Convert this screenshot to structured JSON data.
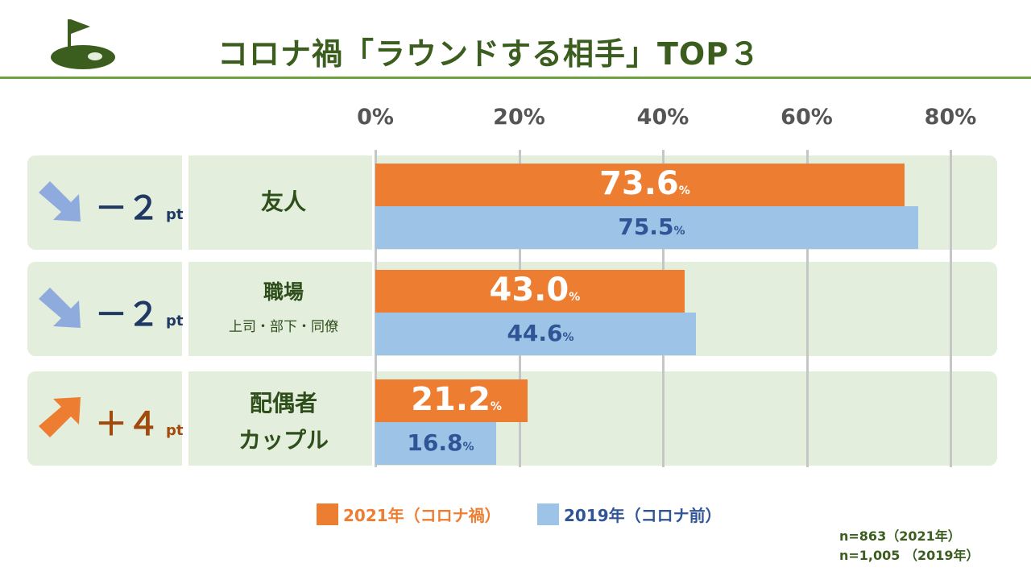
{
  "title": "コロナ禍「ラウンドする相手」TOP３",
  "colors": {
    "series_2021": "#ed7d31",
    "series_2019": "#9dc3e6",
    "label_2019": "#2f5597",
    "increase": "#ed7d31",
    "decrease": "#8faadc",
    "row_bg": "#e4eedc",
    "title": "#3b5e1f"
  },
  "rows": [
    {
      "category": "友人",
      "sub": "",
      "change": "－２",
      "change_unit": "pt",
      "direction": "down"
    },
    {
      "category": "職場",
      "sub": "上司・部下・同僚",
      "change": "－２",
      "change_unit": "pt",
      "direction": "down"
    },
    {
      "category": "配偶者\nカップル",
      "sub": "",
      "change": "＋４",
      "change_unit": "pt",
      "direction": "up"
    }
  ],
  "legend": [
    "2021年（コロナ禍）",
    "2019年（コロナ前）"
  ],
  "notes": [
    "n=863（2021年）",
    "n=1,005 （2019年）"
  ],
  "chart_data": {
    "type": "bar",
    "orientation": "horizontal",
    "categories": [
      "友人",
      "職場",
      "配偶者カップル"
    ],
    "series": [
      {
        "name": "2021年（コロナ禍）",
        "values": [
          73.6,
          43.0,
          21.2
        ],
        "labels": [
          "73.6",
          "43.0",
          "21.2"
        ]
      },
      {
        "name": "2019年（コロナ前）",
        "values": [
          75.5,
          44.6,
          16.8
        ],
        "labels": [
          "75.5",
          "44.6",
          "16.8"
        ]
      }
    ],
    "value_suffix": "%",
    "xlim": [
      0,
      80
    ],
    "ticks": [
      "0%",
      "20%",
      "40%",
      "60%",
      "80%"
    ],
    "grid": true,
    "legend_position": "bottom"
  }
}
